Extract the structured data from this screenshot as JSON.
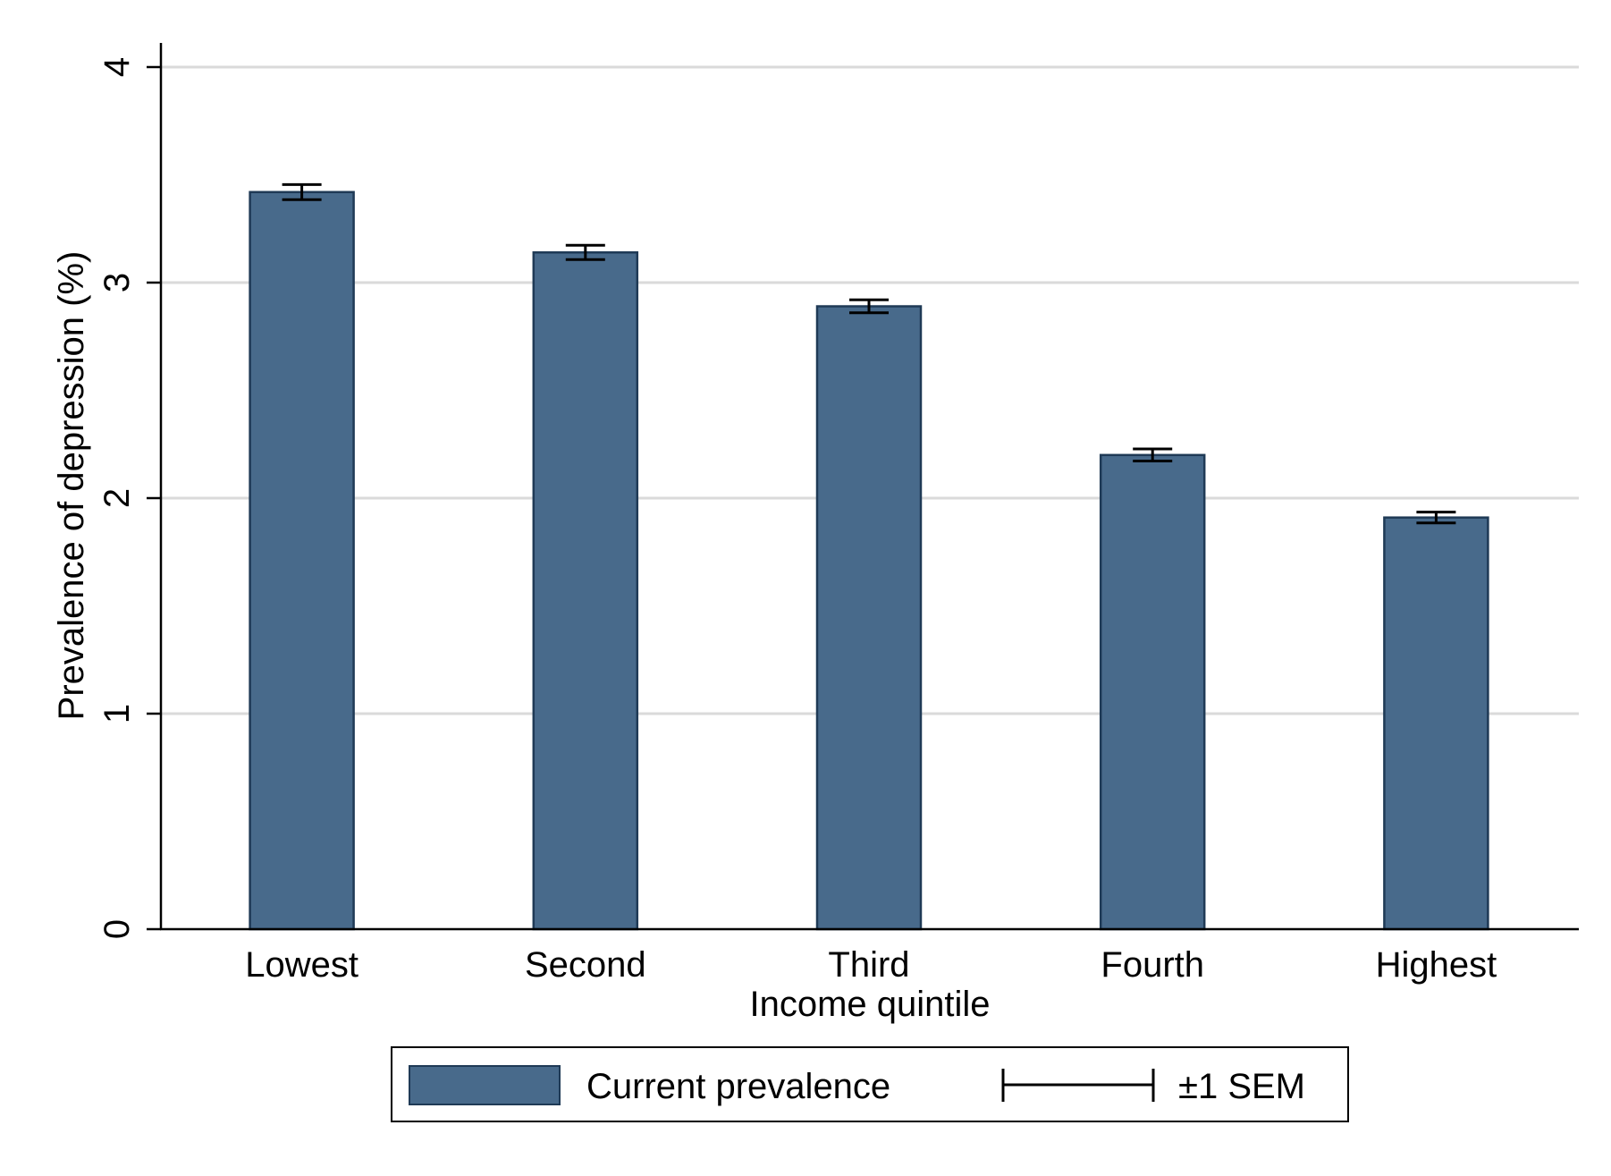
{
  "chart_data": {
    "type": "bar",
    "xlabel": "Income quintile",
    "ylabel": "Prevalence of depression (%)",
    "categories": [
      "Lowest",
      "Second",
      "Third",
      "Fourth",
      "Highest"
    ],
    "series": [
      {
        "name": "Current prevalence",
        "values": [
          3.42,
          3.14,
          2.89,
          2.2,
          1.91
        ],
        "sem": [
          0.035,
          0.033,
          0.03,
          0.028,
          0.025
        ]
      }
    ],
    "ylim": [
      0,
      4
    ],
    "yticks": [
      0,
      1,
      2,
      3,
      4
    ],
    "grid": true,
    "legend": {
      "position": "bottom",
      "items": [
        "Current prevalence",
        "±1 SEM"
      ]
    },
    "colors": {
      "bar_fill": "#486a8b",
      "bar_edge": "#1f3a56",
      "grid": "#dadada",
      "error_bar": "#000000"
    }
  }
}
